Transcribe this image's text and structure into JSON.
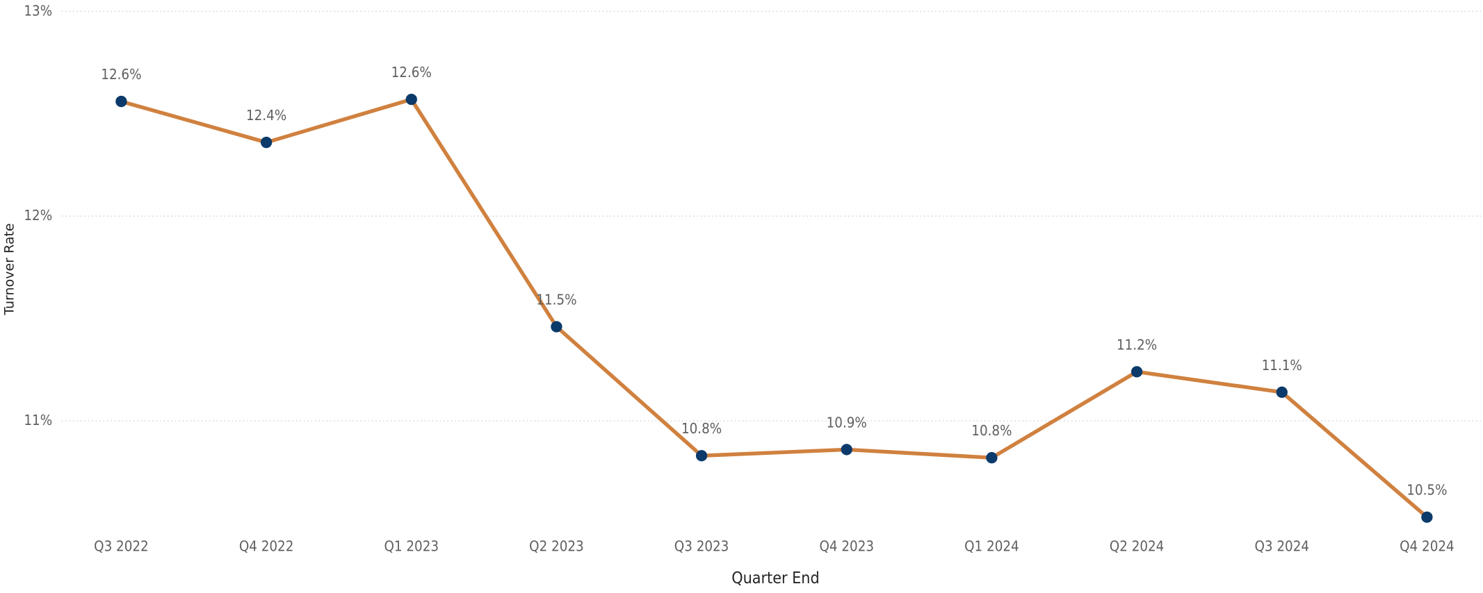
{
  "chart_data": {
    "type": "line",
    "x_label": "Quarter End",
    "y_label": "Turnover Rate",
    "categories": [
      "Q3 2022",
      "Q4 2022",
      "Q1 2023",
      "Q2 2023",
      "Q3 2023",
      "Q4 2023",
      "Q1 2024",
      "Q2 2024",
      "Q3 2024",
      "Q4 2024"
    ],
    "series": [
      {
        "name": "Turnover Rate",
        "color": "#d0813f",
        "marker_color": "#0b3a6b",
        "values": [
          12.56,
          12.36,
          12.57,
          11.46,
          10.83,
          10.86,
          10.82,
          11.24,
          11.14,
          10.53
        ],
        "value_labels": [
          "12.6%",
          "12.4%",
          "12.6%",
          "11.5%",
          "10.8%",
          "10.9%",
          "10.8%",
          "11.2%",
          "11.1%",
          "10.5%"
        ]
      }
    ],
    "ylim": [
      10.45,
      13
    ],
    "yticks": [
      {
        "value": 11,
        "label": "11%"
      },
      {
        "value": 12,
        "label": "12%"
      },
      {
        "value": 13,
        "label": "13%"
      }
    ],
    "grid": true
  }
}
